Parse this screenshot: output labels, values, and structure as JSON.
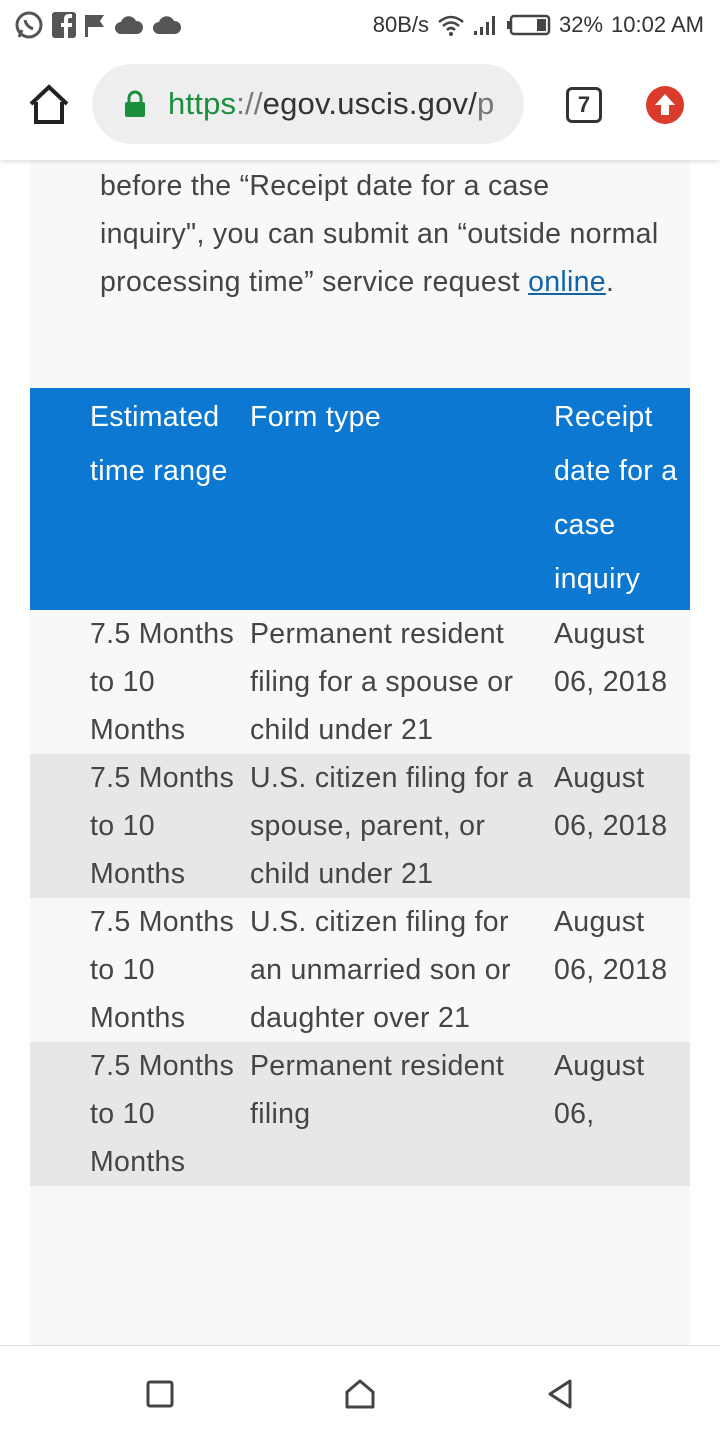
{
  "status_bar": {
    "network_speed": "80B/s",
    "battery_percent": "32%",
    "time": "10:02 AM",
    "left_icons": [
      "whatsapp-icon",
      "facebook-icon",
      "flag-icon",
      "cloud-icon",
      "cloud-icon"
    ]
  },
  "browser": {
    "url_scheme": "https",
    "url_separator": "://",
    "url_host": "egov.uscis.gov/",
    "url_tail": "p",
    "tab_count": "7",
    "colors": {
      "secure_green": "#1a8f3c",
      "update_red": "#db3b2b"
    }
  },
  "page": {
    "intro_text": "before the “Receipt date for a case inquiry\", you can submit an “outside normal processing time” service request ",
    "intro_link": "online",
    "intro_end": ".",
    "table": {
      "header_color": "#0c78d1",
      "headers": [
        "Estimated time range",
        "Form type",
        "Receipt date for a case inquiry"
      ],
      "rows": [
        {
          "range": "7.5 Months to 10 Months",
          "form_type": "Permanent resident filing for a spouse or child under 21",
          "receipt_date": "August 06, 2018"
        },
        {
          "range": "7.5 Months to 10 Months",
          "form_type": "U.S. citizen filing for a spouse, parent, or child under 21",
          "receipt_date": "August 06, 2018"
        },
        {
          "range": "7.5 Months to 10 Months",
          "form_type": "U.S. citizen filing for an unmarried son or daughter over 21",
          "receipt_date": "August 06, 2018"
        },
        {
          "range": "7.5 Months to 10 Months",
          "form_type": "Permanent resident filing",
          "receipt_date": "August 06,"
        }
      ]
    }
  },
  "nav_bar": {
    "buttons": [
      "recents-icon",
      "home-icon",
      "back-icon"
    ]
  }
}
